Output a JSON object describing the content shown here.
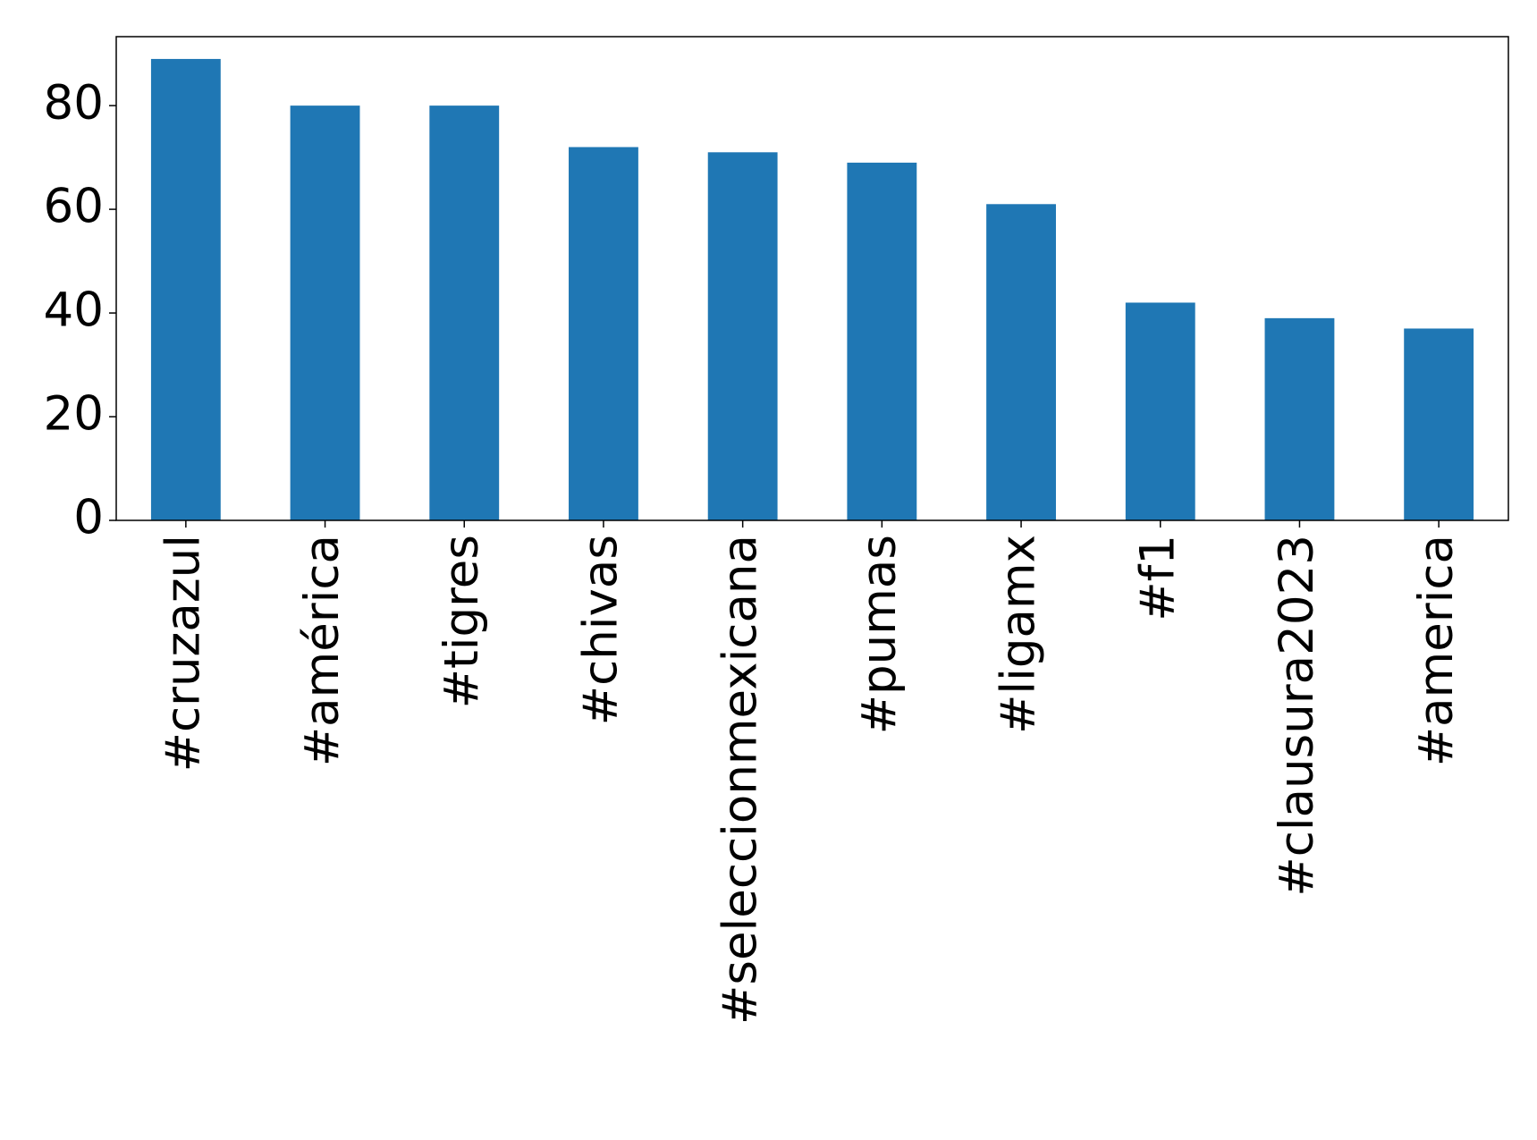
{
  "chart_data": {
    "type": "bar",
    "categories": [
      "#cruzazul",
      "#américa",
      "#tigres",
      "#chivas",
      "#seleccionmexicana",
      "#pumas",
      "#ligamx",
      "#f1",
      "#clausura2023",
      "#america"
    ],
    "values": [
      89,
      80,
      80,
      72,
      71,
      69,
      61,
      42,
      39,
      37
    ],
    "color": "#1f77b4",
    "ylim": [
      0,
      93.3
    ],
    "yticks": [
      0,
      20,
      40,
      60,
      80
    ],
    "grid": false
  }
}
